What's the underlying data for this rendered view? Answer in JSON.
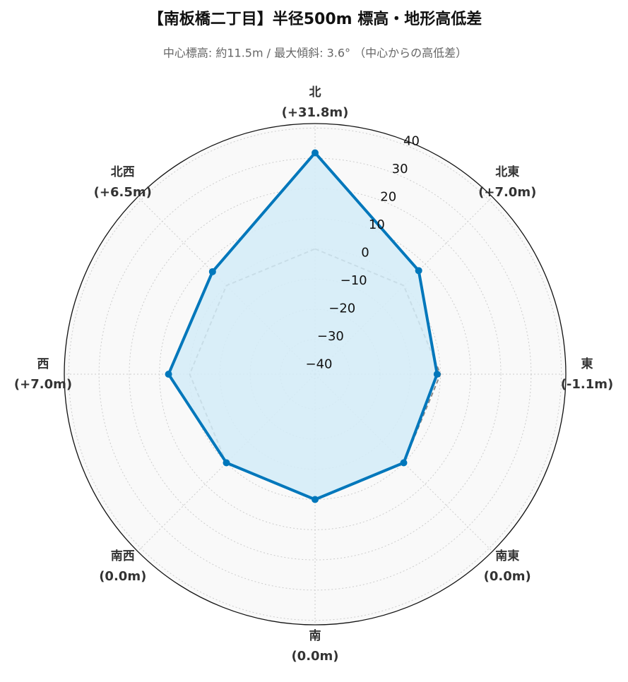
{
  "chart_data": {
    "type": "radar",
    "title": "【南板橋二丁目】半径500m 標高・地形高低差",
    "subtitle": "中心標高: 約11.5m / 最大傾斜: 3.6° （中心からの高低差）",
    "categories": [
      "北",
      "北東",
      "東",
      "南東",
      "南",
      "南西",
      "西",
      "北西"
    ],
    "values": [
      31.8,
      7.0,
      -1.1,
      0.0,
      0.0,
      0.0,
      7.0,
      6.5
    ],
    "value_labels": [
      "(+31.8m)",
      "(+7.0m)",
      "(-1.1m)",
      "(0.0m)",
      "(0.0m)",
      "(0.0m)",
      "(+7.0m)",
      "(+6.5m)"
    ],
    "color": "#0077bb",
    "fill_color": "#d4ecf8",
    "reference_value": 0,
    "reference_color": "#888888",
    "ylim": [
      -41.5,
      41.5
    ],
    "yticks": [
      {
        "value": -40,
        "label": "−40"
      },
      {
        "value": -30,
        "label": "−30"
      },
      {
        "value": -20,
        "label": "−20"
      },
      {
        "value": -10,
        "label": "−10"
      },
      0,
      10,
      20,
      30,
      40
    ],
    "grid": true
  }
}
